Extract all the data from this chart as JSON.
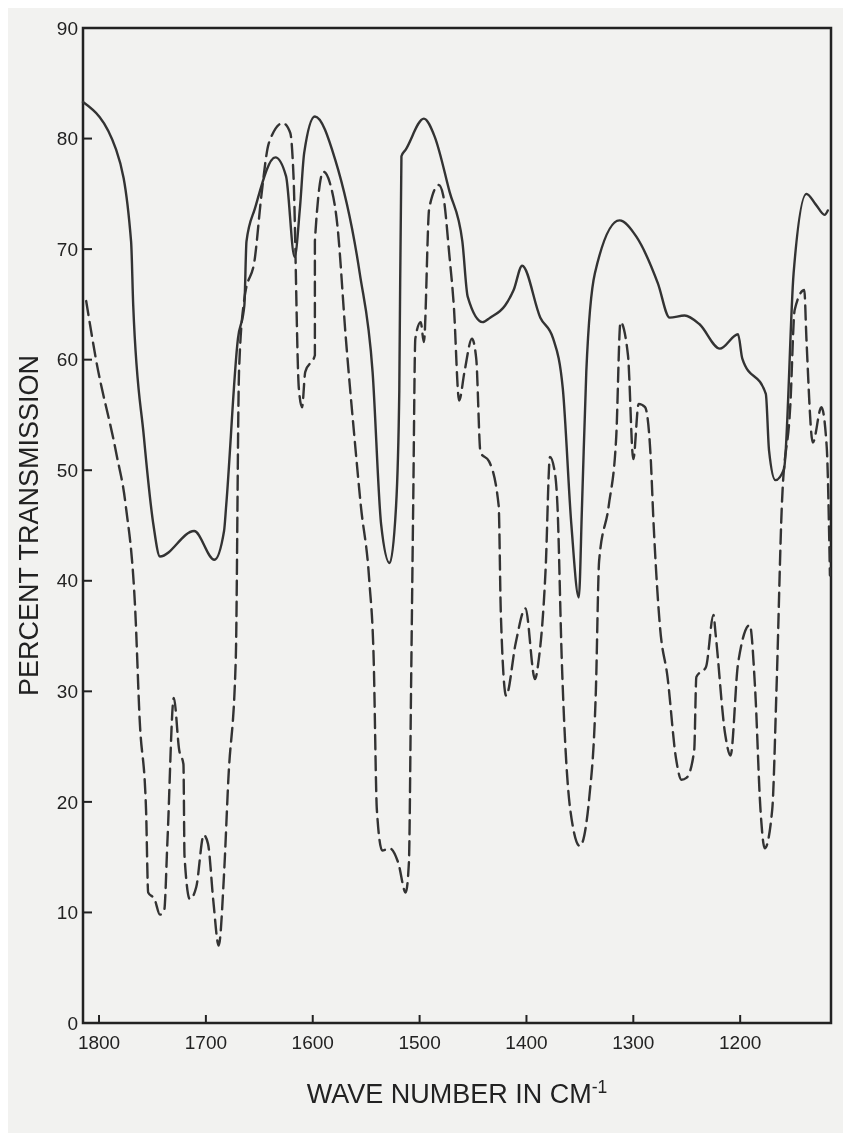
{
  "chart_data": {
    "type": "line",
    "xlabel": "WAVE NUMBER IN CM$^{-1}$",
    "ylabel": "PERCENT TRANSMISSION",
    "xlim": [
      1815,
      1115
    ],
    "ylim": [
      0,
      90
    ],
    "xticks": [
      1800,
      1700,
      1600,
      1500,
      1400,
      1300,
      1200
    ],
    "yticks": [
      0,
      10,
      20,
      30,
      40,
      50,
      60,
      70,
      80,
      90
    ],
    "grid": false,
    "marker": "none",
    "series": [
      {
        "color": "#333333",
        "line_style": "solid",
        "x": [
          1815,
          1784,
          1770,
          1768,
          1758,
          1749,
          1743,
          1711,
          1692,
          1683,
          1681,
          1670,
          1664,
          1662,
          1654,
          1635,
          1625,
          1617,
          1612,
          1608,
          1598,
          1579,
          1556,
          1544,
          1536,
          1528,
          1522,
          1519,
          1517,
          1513,
          1496,
          1486,
          1472,
          1460,
          1455,
          1441,
          1434,
          1420,
          1412,
          1404,
          1387,
          1375,
          1366,
          1358,
          1351,
          1348,
          1344,
          1336,
          1313,
          1297,
          1277,
          1266,
          1252,
          1238,
          1219,
          1202,
          1198,
          1176,
          1173,
          1167,
          1159,
          1150,
          1138,
          1129,
          1121,
          1118
        ],
        "values": [
          83.3,
          79,
          70.7,
          64.9,
          53,
          45,
          42.2,
          44.5,
          41.9,
          44.5,
          46.8,
          61.9,
          64.9,
          70.7,
          73.7,
          78.3,
          76.6,
          69.3,
          73.7,
          78.7,
          82,
          78.1,
          67.8,
          58.9,
          45.1,
          41.6,
          46.8,
          57.2,
          78.4,
          79,
          81.8,
          80.2,
          75.2,
          70.7,
          65.7,
          63.4,
          63.8,
          64.9,
          66.3,
          68.5,
          63.8,
          61.9,
          57.4,
          45.1,
          38.5,
          46.8,
          58.9,
          67.8,
          72.6,
          71.1,
          66.9,
          63.8,
          64,
          63.2,
          61,
          62.3,
          60.1,
          56.9,
          51.8,
          49.1,
          50.1,
          67.8,
          75,
          74,
          73.1,
          73.5
        ]
      },
      {
        "color": "#333333",
        "line_style": "dashed",
        "x": [
          1812,
          1803,
          1784,
          1775,
          1766,
          1762,
          1756,
          1754,
          1748,
          1743,
          1739,
          1736,
          1730,
          1725,
          1721,
          1720,
          1715,
          1709,
          1702,
          1698,
          1693,
          1688,
          1683,
          1679,
          1672,
          1669,
          1664,
          1654,
          1648,
          1641,
          1628,
          1621,
          1618,
          1613,
          1610,
          1607,
          1598,
          1598,
          1590,
          1584,
          1577,
          1569,
          1561,
          1555,
          1547,
          1543,
          1540,
          1535,
          1528,
          1520,
          1513,
          1510,
          1508,
          1506,
          1504,
          1499,
          1496,
          1491,
          1482,
          1478,
          1472,
          1468,
          1463,
          1458,
          1451,
          1447,
          1443,
          1435,
          1426,
          1424,
          1419,
          1410,
          1401,
          1392,
          1389,
          1382,
          1378,
          1373,
          1371,
          1367,
          1359,
          1350,
          1341,
          1335,
          1332,
          1323,
          1316,
          1312,
          1305,
          1300,
          1295,
          1289,
          1284,
          1281,
          1275,
          1268,
          1260,
          1255,
          1250,
          1243,
          1241,
          1232,
          1225,
          1223,
          1214,
          1209,
          1202,
          1191,
          1186,
          1181,
          1177,
          1170,
          1166,
          1161,
          1153,
          1149,
          1140,
          1138,
          1132,
          1124,
          1119,
          1116
        ],
        "values": [
          65.3,
          60.1,
          51.6,
          46.8,
          37.1,
          27.5,
          19.3,
          11.8,
          11.2,
          9.8,
          10.2,
          16.4,
          29.4,
          24.7,
          23.4,
          15.1,
          11.2,
          12.3,
          17,
          16.2,
          11,
          7,
          13.5,
          22,
          33,
          58.9,
          65.5,
          69.3,
          74.9,
          79.6,
          81.4,
          80.5,
          76.6,
          57.4,
          55.7,
          58.9,
          60.4,
          70.7,
          77,
          76,
          72.2,
          61.9,
          53,
          46.8,
          39.9,
          33,
          19.3,
          15.6,
          15.8,
          14.5,
          11.8,
          14.5,
          30.2,
          46.8,
          61.9,
          63.4,
          61.6,
          73.7,
          75.8,
          74.9,
          69.3,
          64.9,
          56.3,
          58.9,
          61.9,
          60.1,
          51.6,
          50.8,
          46.8,
          37.1,
          29.6,
          34.4,
          37.5,
          31.1,
          32.5,
          41.2,
          51.2,
          49.5,
          46.8,
          33,
          19.3,
          16,
          20.6,
          30.2,
          41.8,
          46.8,
          53,
          63.4,
          60.4,
          51,
          56,
          55.7,
          51.6,
          45.1,
          35.8,
          31.3,
          23.9,
          22,
          22.2,
          24.7,
          31.3,
          32.2,
          36.9,
          35.2,
          26.1,
          24.2,
          32.5,
          36,
          30.2,
          19.3,
          15.8,
          19.3,
          30.2,
          46.8,
          56,
          64.5,
          66.3,
          61.9,
          52.5,
          55.7,
          52.1,
          40.5
        ]
      }
    ]
  }
}
